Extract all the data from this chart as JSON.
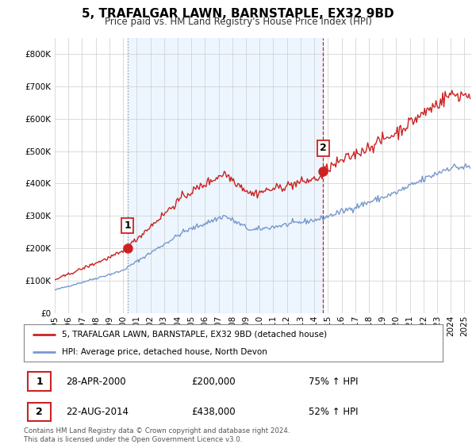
{
  "title": "5, TRAFALGAR LAWN, BARNSTAPLE, EX32 9BD",
  "subtitle": "Price paid vs. HM Land Registry's House Price Index (HPI)",
  "hpi_color": "#7799cc",
  "price_color": "#cc2222",
  "annotation_edge_color": "#cc2222",
  "vline1_color": "#999999",
  "vline2_color": "#cc2222",
  "shade_color": "#ddeeff",
  "shade_alpha": 0.5,
  "sale1_date": "28-APR-2000",
  "sale1_price": 200000,
  "sale1_pct": "75% ↑ HPI",
  "sale2_date": "22-AUG-2014",
  "sale2_price": 438000,
  "sale2_pct": "52% ↑ HPI",
  "legend1": "5, TRAFALGAR LAWN, BARNSTAPLE, EX32 9BD (detached house)",
  "legend2": "HPI: Average price, detached house, North Devon",
  "footer": "Contains HM Land Registry data © Crown copyright and database right 2024.\nThis data is licensed under the Open Government Licence v3.0.",
  "ylim": [
    0,
    850000
  ],
  "yticks": [
    0,
    100000,
    200000,
    300000,
    400000,
    500000,
    600000,
    700000,
    800000
  ],
  "background_color": "#ffffff",
  "grid_color": "#cccccc",
  "start_year": 1995,
  "end_year": 2025
}
